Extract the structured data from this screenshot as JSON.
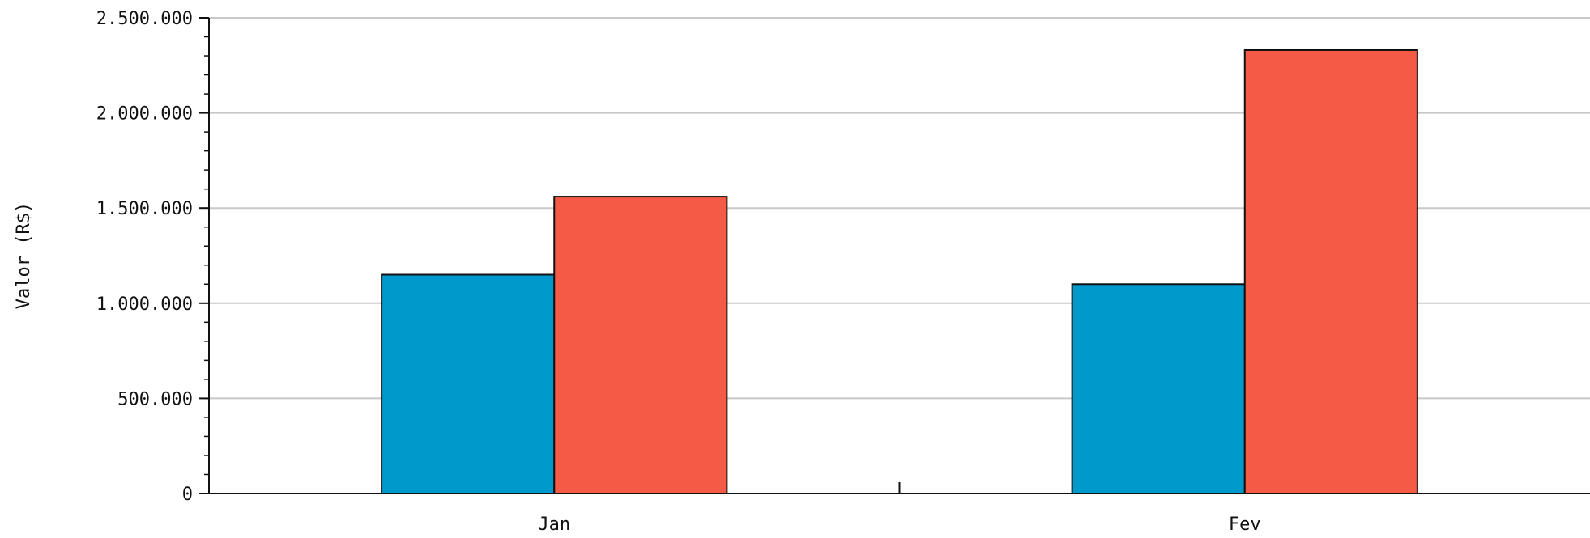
{
  "chart_data": {
    "type": "bar",
    "categories": [
      "Jan",
      "Fev"
    ],
    "series": [
      {
        "values": [
          1150000,
          1100000
        ],
        "color": "#0099cc"
      },
      {
        "values": [
          1560000,
          2330000
        ],
        "color": "#f45a45"
      }
    ],
    "ylabel": "Valor (R$)",
    "xlabel": "",
    "ylim": [
      0,
      2500000
    ],
    "yticks": [
      0,
      500000,
      1000000,
      1500000,
      2000000,
      2500000
    ],
    "ytick_labels": [
      "0",
      "500.000",
      "1.000.000",
      "1.500.000",
      "2.000.000",
      "2.500.000"
    ],
    "grid": true,
    "gridline_color": "#c8c8c8",
    "axis_color": "#111111",
    "bar_outline_color": "#111111"
  }
}
